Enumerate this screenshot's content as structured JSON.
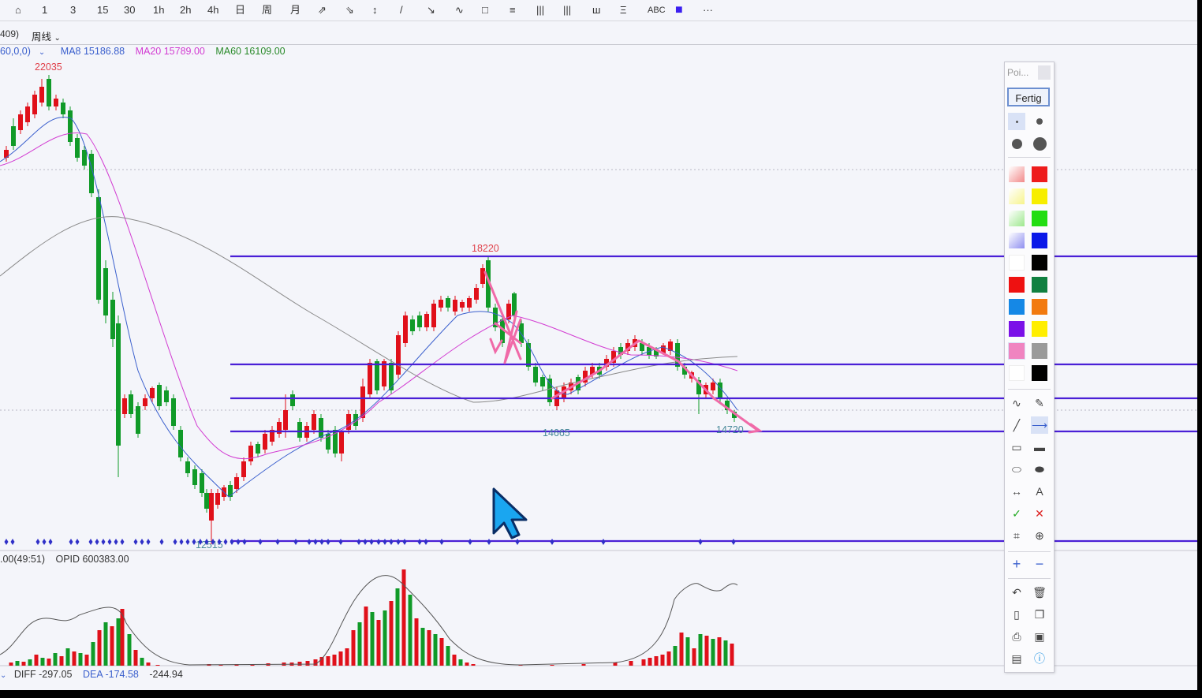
{
  "toolbar": {
    "items": [
      "⌂",
      "1",
      "3",
      "15",
      "30",
      "1h",
      "2h",
      "4h",
      "日",
      "周",
      "月",
      "⇗",
      "⇘",
      "↕",
      "/",
      "↘",
      "∿",
      "□",
      "≡",
      "|||",
      "|||",
      "ш",
      "Ξ",
      "ABC",
      "■",
      "···"
    ]
  },
  "period": {
    "code_suffix": "409)",
    "period_label": "周线"
  },
  "ma_legend": {
    "prefix": "60,0,0)",
    "ma8": "MA8 15186.88",
    "ma20": "MA20 15789.00",
    "ma60": "MA60 16109.00",
    "colors": {
      "ma8": "#3a5fcd",
      "ma20": "#d23cd2",
      "ma60": "#2a8a2a"
    }
  },
  "chart_data": {
    "type": "candlestick",
    "price_labels": {
      "high_1": "22035",
      "high_2": "18220",
      "low_1": "14665",
      "low_2": "14720",
      "low_bottom": "12515"
    },
    "drawn_lines": [
      18220,
      15600,
      15200,
      14800,
      12600
    ],
    "line_color": "#4a1fd6",
    "up_color": "#e0101a",
    "down_color": "#109a28"
  },
  "sub_legend": {
    "value": ".00(49:51)",
    "opid": "OPID 600383.00"
  },
  "macd_legend": {
    "diff": "DIFF -297.05",
    "dea": "DEA -174.58",
    "macd": "-244.94"
  },
  "palette": {
    "title": "Poi...",
    "done_label": "Fertig",
    "colors": [
      "#f28a8a",
      "#ee1c1c",
      "#f7f48c",
      "#f7ee00",
      "#9ee88e",
      "#22dd11",
      "#8f8ff0",
      "#0a18e8",
      "#ffffff",
      "#000000",
      "#ee1111",
      "#108040",
      "#1588e6",
      "#f27a10",
      "#7b10e8",
      "#ffee00",
      "#f084c0",
      "#9a9a9a",
      "#ffffff",
      "#000000"
    ],
    "selected_color_index": 16
  }
}
